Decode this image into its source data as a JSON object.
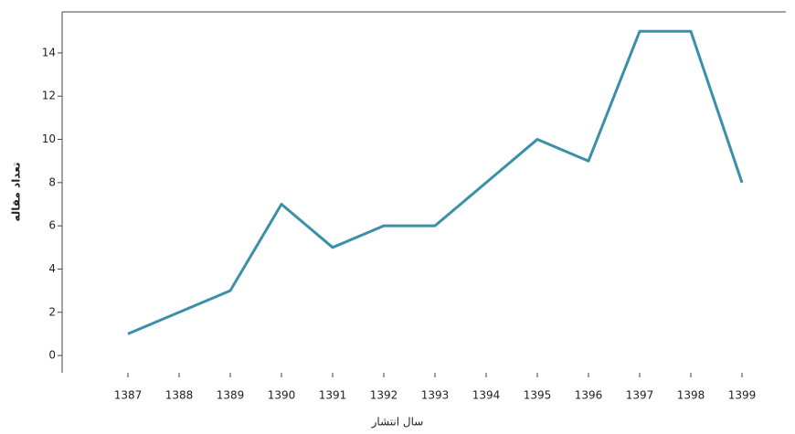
{
  "chart_data": {
    "type": "line",
    "x_label": "سال انتشار",
    "y_label": "تعداد مقاله",
    "categories": [
      "1387",
      "1388",
      "1389",
      "1390",
      "1391",
      "1392",
      "1393",
      "1394",
      "1395",
      "1396",
      "1397",
      "1398",
      "1399"
    ],
    "values": [
      1,
      2,
      3,
      7,
      5,
      6,
      6,
      8,
      10,
      9,
      15,
      15,
      8
    ],
    "color": "#3b8fa8",
    "ylim": [
      -0.8,
      15.9
    ],
    "yticks": [
      0,
      2,
      4,
      6,
      8,
      10,
      12,
      14
    ]
  }
}
